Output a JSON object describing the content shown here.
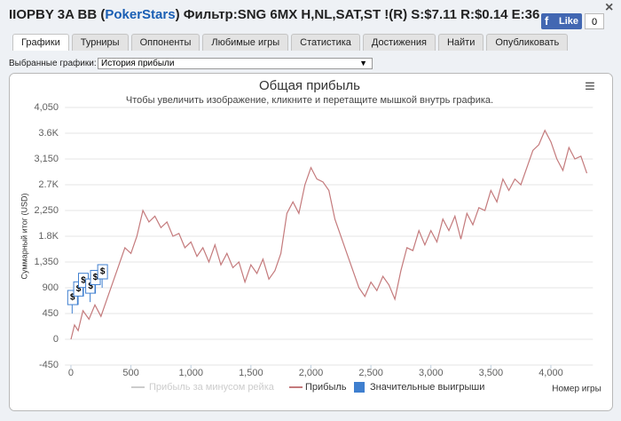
{
  "header": {
    "title_start": "IIOPBY 3A BB (",
    "site": "PokerStars",
    "title_end": ") Фильтр:SNG 6MX H,NL,SAT,ST !(R) S:$7.11 R:$0.14 E:36",
    "close": "×",
    "like": "Like",
    "like_count": "0"
  },
  "tabs": [
    "Графики",
    "Турниры",
    "Оппоненты",
    "Любимые игры",
    "Статистика",
    "Достижения",
    "Найти",
    "Опубликовать"
  ],
  "selector": {
    "label": "Выбранные графики:",
    "value": "История прибыли",
    "arrow": "▼"
  },
  "chart_data": {
    "type": "line",
    "title": "Общая прибыль",
    "subtitle": "Чтобы увеличить изображение, кликните и перетащите мышкой внутрь графика.",
    "menu": "≡",
    "xlabel": "Номер игры",
    "ylabel": "Суммарный итог (USD)",
    "xlim": [
      -50,
      4350
    ],
    "ylim": [
      -450,
      4050
    ],
    "xticks": [
      0,
      500,
      {
        "value": 1000,
        "label": "1,000"
      },
      {
        "value": 1500,
        "label": "1,500"
      },
      {
        "value": 2000,
        "label": "2,000"
      },
      {
        "value": 2500,
        "label": "2,500"
      },
      {
        "value": 3000,
        "label": "3,000"
      },
      {
        "value": 3500,
        "label": "3,500"
      },
      {
        "value": 4000,
        "label": "4,000"
      }
    ],
    "yticks": [
      {
        "value": -450,
        "label": "-450"
      },
      0,
      450,
      900,
      {
        "value": 1350,
        "label": "1,350"
      },
      {
        "value": 1800,
        "label": "1.8K"
      },
      {
        "value": 2250,
        "label": "2,250"
      },
      {
        "value": 2700,
        "label": "2.7K"
      },
      {
        "value": 3150,
        "label": "3,150"
      },
      {
        "value": 3600,
        "label": "3.6K"
      },
      {
        "value": 4050,
        "label": "4,050"
      }
    ],
    "grid": true,
    "x": [
      0,
      30,
      60,
      100,
      150,
      200,
      250,
      300,
      350,
      400,
      450,
      500,
      550,
      600,
      650,
      700,
      750,
      800,
      850,
      900,
      950,
      1000,
      1050,
      1100,
      1150,
      1200,
      1250,
      1300,
      1350,
      1400,
      1450,
      1500,
      1550,
      1600,
      1650,
      1700,
      1750,
      1800,
      1850,
      1900,
      1950,
      2000,
      2050,
      2100,
      2150,
      2200,
      2300,
      2400,
      2450,
      2500,
      2550,
      2600,
      2650,
      2700,
      2750,
      2800,
      2850,
      2900,
      2950,
      3000,
      3050,
      3100,
      3150,
      3200,
      3250,
      3300,
      3350,
      3400,
      3450,
      3500,
      3550,
      3600,
      3650,
      3700,
      3750,
      3800,
      3850,
      3900,
      3950,
      4000,
      4050,
      4100,
      4150,
      4200,
      4250,
      4300
    ],
    "series": [
      {
        "name": "Прибыль",
        "color": "#c47a7c",
        "values": [
          0,
          250,
          150,
          500,
          350,
          600,
          400,
          700,
          1000,
          1300,
          1600,
          1500,
          1800,
          2250,
          2050,
          2150,
          1950,
          2050,
          1800,
          1850,
          1600,
          1700,
          1450,
          1600,
          1350,
          1650,
          1300,
          1500,
          1250,
          1350,
          1000,
          1300,
          1150,
          1400,
          1050,
          1200,
          1500,
          2200,
          2400,
          2200,
          2700,
          3000,
          2800,
          2750,
          2600,
          2100,
          1500,
          900,
          750,
          1000,
          850,
          1100,
          950,
          700,
          1200,
          1600,
          1550,
          1900,
          1650,
          1900,
          1700,
          2100,
          1900,
          2150,
          1750,
          2200,
          2000,
          2300,
          2250,
          2600,
          2400,
          2800,
          2600,
          2800,
          2700,
          3000,
          3300,
          3400,
          3650,
          3450,
          3150,
          2950,
          3350,
          3150,
          3200,
          2900
        ]
      }
    ],
    "hidden_series": {
      "name": "Прибыль за минусом рейка",
      "color": "#cccccc"
    },
    "flags": {
      "name": "Значительные выигрыши",
      "color": "#3f7fcf",
      "label": "$",
      "x": [
        10,
        60,
        100,
        160,
        200,
        260
      ],
      "values": [
        450,
        600,
        750,
        650,
        800,
        900
      ]
    }
  }
}
